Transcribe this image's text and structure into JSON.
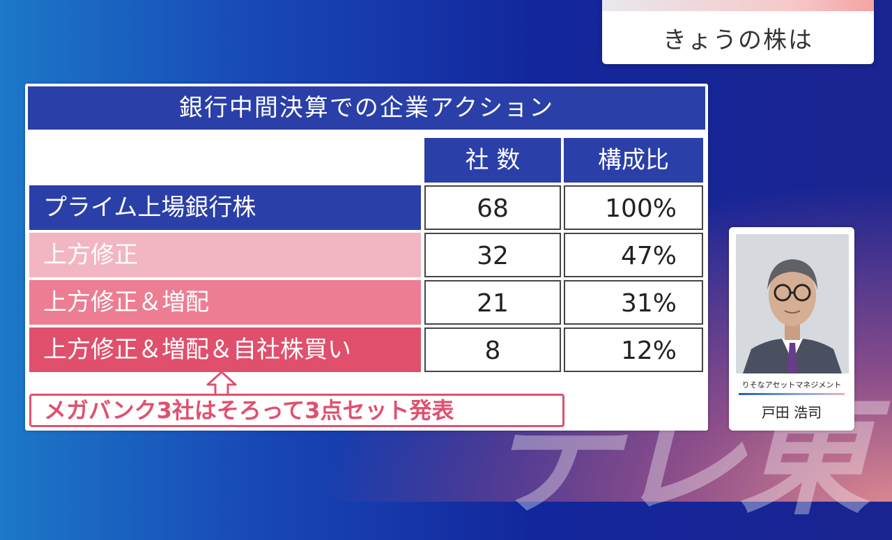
{
  "header": {
    "title": "きょうの株は"
  },
  "watermark": "テレ東",
  "panel": {
    "title": "銀行中間決算での企業アクション",
    "columns": [
      "社 数",
      "構成比"
    ],
    "rows": [
      {
        "label": "プライム上場銀行株",
        "count": "68",
        "ratio": "100%",
        "color": "#2a3fa8"
      },
      {
        "label": "上方修正",
        "count": "32",
        "ratio": "47%",
        "color": "#f2b6c3"
      },
      {
        "label": "上方修正＆増配",
        "count": "21",
        "ratio": "31%",
        "color": "#ec7d93"
      },
      {
        "label": "上方修正＆増配＆自社株買い",
        "count": "8",
        "ratio": "12%",
        "color": "#e04f6c"
      }
    ],
    "note": "メガバンク3社はそろって3点セット発表"
  },
  "profile": {
    "company": "りそなアセットマネジメント",
    "name": "戸田 浩司"
  }
}
